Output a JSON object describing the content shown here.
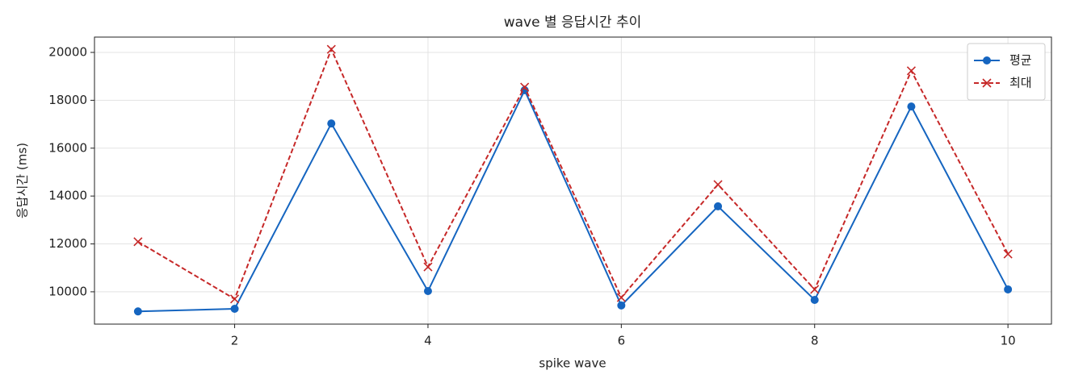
{
  "chart_data": {
    "type": "line",
    "title": "wave 별 응답시간 추이",
    "x_label": "spike wave",
    "y_label": "응답시간 (ms)",
    "x": [
      1,
      2,
      3,
      4,
      5,
      6,
      7,
      8,
      9,
      10
    ],
    "series": [
      {
        "name": "평균",
        "color": "#1565c0",
        "linestyle": "solid",
        "marker": "circle",
        "values": [
          9180,
          9290,
          17030,
          10030,
          18420,
          9430,
          13570,
          9660,
          17740,
          10100
        ]
      },
      {
        "name": "최대",
        "color": "#c62828",
        "linestyle": "dashed",
        "marker": "x",
        "values": [
          12090,
          9700,
          20130,
          11040,
          18550,
          9760,
          14480,
          10100,
          19230,
          11580
        ]
      }
    ],
    "xlim": [
      0.55,
      10.45
    ],
    "ylim": [
      8650,
      20640
    ],
    "xticks": [
      2,
      4,
      6,
      8,
      10
    ],
    "yticks": [
      10000,
      12000,
      14000,
      16000,
      18000,
      20000
    ],
    "grid": true,
    "legend": "upper right"
  }
}
